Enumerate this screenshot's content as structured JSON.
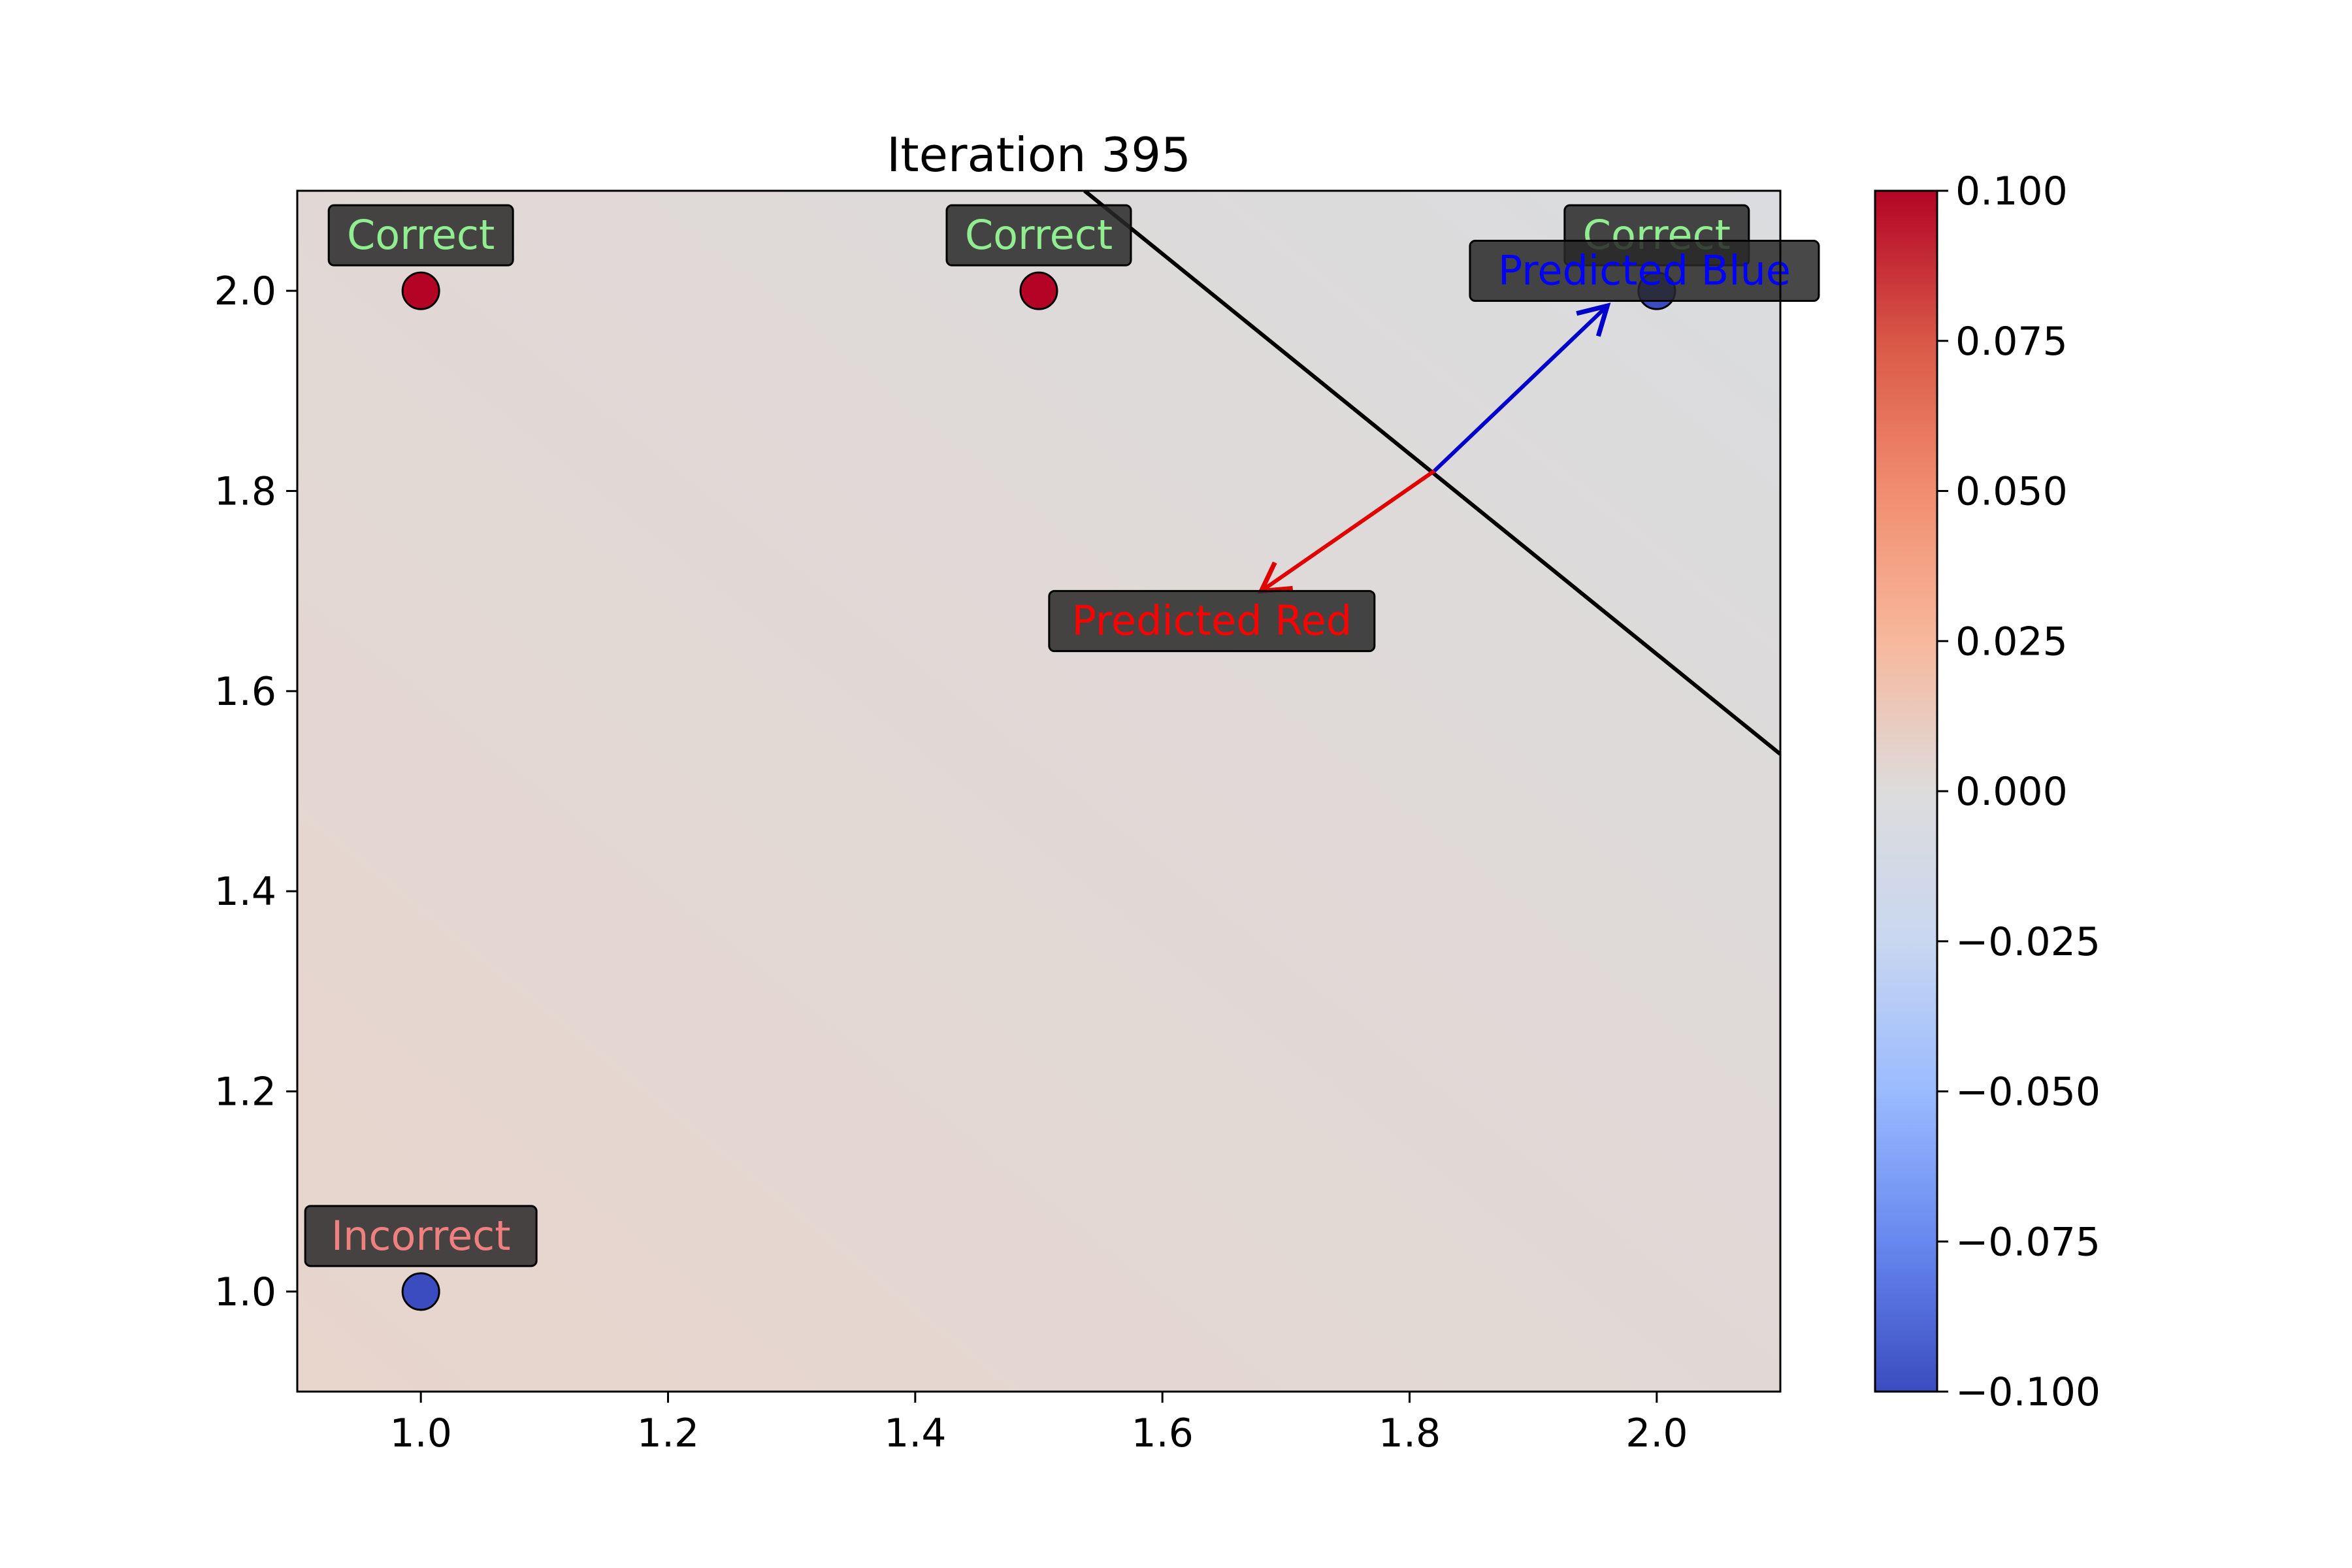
{
  "chart_data": {
    "type": "scatter",
    "title": "Iteration 395",
    "xlabel": "",
    "ylabel": "",
    "xlim": [
      0.9,
      2.1
    ],
    "ylim": [
      0.9,
      2.1
    ],
    "x_ticks": [
      "1.0",
      "1.2",
      "1.4",
      "1.6",
      "1.8",
      "2.0"
    ],
    "y_ticks": [
      "1.0",
      "1.2",
      "1.4",
      "1.6",
      "1.8",
      "2.0"
    ],
    "grid": false,
    "points": [
      {
        "x": 1.0,
        "y": 2.0,
        "class": "red",
        "color": "#b40426",
        "label": "Correct",
        "label_color": "#90ee90"
      },
      {
        "x": 1.5,
        "y": 2.0,
        "class": "red",
        "color": "#b40426",
        "label": "Correct",
        "label_color": "#90ee90"
      },
      {
        "x": 2.0,
        "y": 2.0,
        "class": "blue",
        "color": "#3b4cc0",
        "label": "Correct",
        "label_color": "#90ee90"
      },
      {
        "x": 1.0,
        "y": 1.0,
        "class": "blue",
        "color": "#3b4cc0",
        "label": "Incorrect",
        "label_color": "#f08080"
      }
    ],
    "decision_boundary": [
      [
        1.537,
        2.1
      ],
      [
        2.1,
        1.537
      ]
    ],
    "arrows": [
      {
        "from": [
          1.82,
          1.82
        ],
        "to": [
          1.96,
          1.985
        ],
        "color": "#0000cc",
        "label": "Predicted Blue",
        "label_at": [
          1.99,
          2.02
        ],
        "label_color": "#0000ff"
      },
      {
        "from": [
          1.82,
          1.82
        ],
        "to": [
          1.68,
          1.7
        ],
        "color": "#e00000",
        "label": "Predicted Red",
        "label_at": [
          1.64,
          1.67
        ],
        "label_color": "#ff0000"
      }
    ],
    "background_colormap": "coolwarm",
    "colorbar": {
      "min": -0.1,
      "max": 0.1,
      "ticks": [
        "0.100",
        "0.075",
        "0.050",
        "0.025",
        "0.000",
        "−0.025",
        "−0.050",
        "−0.075",
        "−0.100"
      ],
      "colors": [
        "#3b4cc0",
        "#6788ee",
        "#9abbff",
        "#c9d7f0",
        "#dddcdc",
        "#f7b89c",
        "#f18d6f",
        "#d95847",
        "#b40426"
      ]
    }
  }
}
